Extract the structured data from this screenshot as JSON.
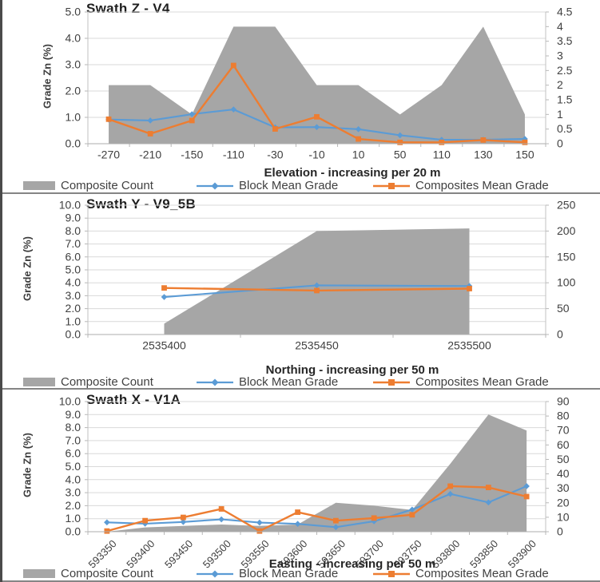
{
  "page": {
    "background_color": "#ffffff",
    "left_strip_color": "#4a4a4a",
    "panel_border_color": "#858585"
  },
  "legend": {
    "position": "bottom",
    "items": [
      {
        "label": "Composite Count",
        "type": "area-swatch",
        "color": "#a6a6a6"
      },
      {
        "label": "Block Mean Grade",
        "type": "line-diamond",
        "color": "#5b9bd5"
      },
      {
        "label": "Composites Mean Grade",
        "type": "line-square",
        "color": "#ed7d31"
      }
    ]
  },
  "chart_data": [
    {
      "type": "area",
      "subtype": "combo area + lines, dual axis",
      "title": "Swath Z - V4",
      "x_title": "Elevation - increasing per 20 m",
      "y_title": "Grade Zn (%)",
      "grid": true,
      "x_label_rotation": 0,
      "categories": [
        "-270",
        "-210",
        "-150",
        "-110",
        "-30",
        "-10",
        "10",
        "50",
        "110",
        "130",
        "150"
      ],
      "left_axis": {
        "min": 0,
        "max": 5,
        "step": 1,
        "decimals": 1
      },
      "right_axis": {
        "min": 0,
        "max": 4.5,
        "step": 0.5,
        "decimals": "auto"
      },
      "series": [
        {
          "name": "Composite Count",
          "type": "area",
          "axis": "right",
          "color": "#a6a6a6",
          "values": [
            2,
            2,
            1,
            4,
            4,
            2,
            2,
            1,
            2,
            4,
            1
          ]
        },
        {
          "name": "Block Mean Grade",
          "type": "line",
          "marker": "diamond",
          "axis": "left",
          "color": "#5b9bd5",
          "values": [
            0.92,
            0.88,
            1.12,
            1.3,
            0.62,
            0.63,
            0.55,
            0.32,
            0.15,
            0.15,
            0.18
          ]
        },
        {
          "name": "Composites Mean Grade",
          "type": "line",
          "marker": "square",
          "axis": "left",
          "color": "#ed7d31",
          "values": [
            0.93,
            0.38,
            0.88,
            2.97,
            0.56,
            1.02,
            0.18,
            0.05,
            0.05,
            0.14,
            0.05
          ]
        }
      ]
    },
    {
      "type": "area",
      "subtype": "combo area + lines, dual axis",
      "title": "Swath Y - V9_5B",
      "x_title": "Northing - increasing per 50 m",
      "y_title": "Grade Zn (%)",
      "grid": true,
      "x_label_rotation": 0,
      "categories": [
        "2535400",
        "2535450",
        "2535500"
      ],
      "left_axis": {
        "min": 0,
        "max": 10,
        "step": 1,
        "decimals": 1
      },
      "right_axis": {
        "min": 0,
        "max": 250,
        "step": 50,
        "decimals": "auto"
      },
      "series": [
        {
          "name": "Composite Count",
          "type": "area",
          "axis": "right",
          "color": "#a6a6a6",
          "values": [
            21,
            200,
            205
          ]
        },
        {
          "name": "Block Mean Grade",
          "type": "line",
          "marker": "diamond",
          "axis": "left",
          "color": "#5b9bd5",
          "values": [
            2.9,
            3.8,
            3.75
          ]
        },
        {
          "name": "Composites Mean Grade",
          "type": "line",
          "marker": "square",
          "axis": "left",
          "color": "#ed7d31",
          "values": [
            3.6,
            3.4,
            3.55
          ]
        }
      ]
    },
    {
      "type": "area",
      "subtype": "combo area + lines, dual axis",
      "title": "Swath X - V1A",
      "x_title": "Easting - increasing per 50 m",
      "y_title": "Grade Zn (%)",
      "grid": true,
      "x_label_rotation": -45,
      "categories": [
        "593350",
        "593400",
        "593450",
        "593500",
        "593550",
        "593600",
        "593650",
        "593700",
        "593750",
        "593800",
        "593850",
        "593900"
      ],
      "left_axis": {
        "min": 0,
        "max": 10,
        "step": 1,
        "decimals": 1
      },
      "right_axis": {
        "min": 0,
        "max": 90,
        "step": 10,
        "decimals": "auto"
      },
      "series": [
        {
          "name": "Composite Count",
          "type": "area",
          "axis": "right",
          "color": "#a6a6a6",
          "values": [
            0,
            3,
            4,
            5,
            4,
            5,
            20,
            18,
            15,
            47,
            81,
            70
          ]
        },
        {
          "name": "Block Mean Grade",
          "type": "line",
          "marker": "diamond",
          "axis": "left",
          "color": "#5b9bd5",
          "values": [
            0.72,
            0.62,
            0.75,
            0.95,
            0.7,
            0.6,
            0.35,
            0.8,
            1.7,
            2.9,
            2.25,
            3.5
          ]
        },
        {
          "name": "Composites Mean Grade",
          "type": "line",
          "marker": "square",
          "axis": "left",
          "color": "#ed7d31",
          "values": [
            0.05,
            0.85,
            1.1,
            1.75,
            0.05,
            1.5,
            0.85,
            1.05,
            1.3,
            3.5,
            3.4,
            2.7
          ]
        }
      ]
    }
  ]
}
